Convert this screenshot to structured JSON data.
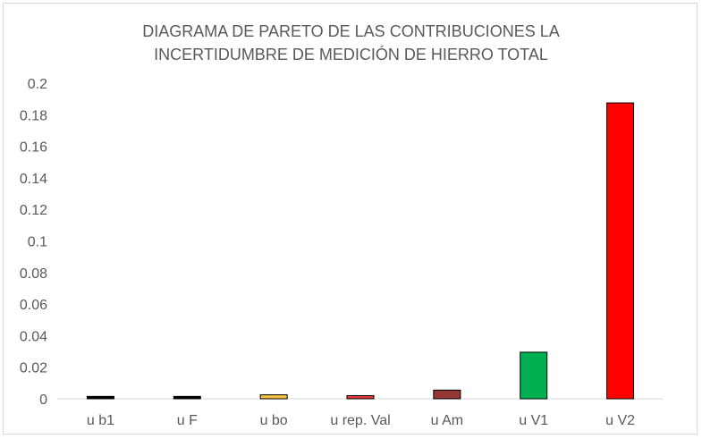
{
  "chart_data": {
    "type": "bar",
    "title_line1": "DIAGRAMA DE PARETO DE LAS CONTRIBUCIONES LA",
    "title_line2": "INCERTIDUMBRE DE MEDICIÓN DE HIERRO TOTAL",
    "categories": [
      "u b1",
      "u F",
      "u bo",
      "u rep. Val",
      "u Am",
      "u V1",
      "u V2"
    ],
    "values": [
      0.0015,
      0.0015,
      0.0025,
      0.002,
      0.0055,
      0.0295,
      0.1875
    ],
    "colors": [
      "#000000",
      "#000000",
      "#f5c242",
      "#e53935",
      "#943634",
      "#00b050",
      "#ff0000"
    ],
    "y_ticks": [
      "0",
      "0.02",
      "0.04",
      "0.06",
      "0.08",
      "0.1",
      "0.12",
      "0.14",
      "0.16",
      "0.18",
      "0.2"
    ],
    "ylim": [
      0,
      0.2
    ],
    "grid": false,
    "legend": "none"
  }
}
